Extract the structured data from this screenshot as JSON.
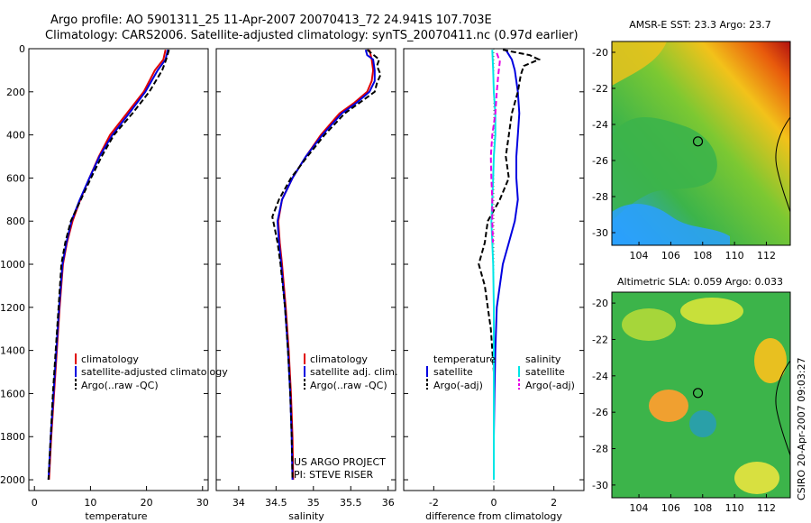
{
  "header": {
    "line1": "Argo profile: AO 5901311_25 11-Apr-2007 20070413_72 24.941S 107.703E",
    "line2": "Climatology: CARS2006. Satellite-adjusted climatology: synTS_20070411.nc (0.97d earlier)"
  },
  "colors": {
    "climatology": "#e00000",
    "satellite": "#0000e0",
    "argo": "#000000",
    "satellite_diff_salinity": "#00e6e6",
    "argo_diff_salinity": "#e600e6"
  },
  "side_text": "CSIRO  20-Apr-2007 09:03:27",
  "chart_data": [
    {
      "type": "line",
      "xlabel": "temperature",
      "xlim": [
        -1,
        31
      ],
      "ylim": [
        2050,
        0
      ],
      "xticks": [
        "0",
        "10",
        "20",
        "30"
      ],
      "xtick_values": [
        0,
        10,
        20,
        30
      ],
      "yticks": [
        "0",
        "200",
        "400",
        "600",
        "800",
        "1000",
        "1200",
        "1400",
        "1600",
        "1800",
        "2000"
      ],
      "ytick_values": [
        0,
        200,
        400,
        600,
        800,
        1000,
        1200,
        1400,
        1600,
        1800,
        2000
      ],
      "legend": [
        "climatology",
        "satellite-adjusted climatology",
        "Argo(..raw -QC)"
      ],
      "series": [
        {
          "name": "climatology",
          "color": "climatology",
          "dash": "",
          "points": [
            [
              23.4,
              5
            ],
            [
              23.0,
              50
            ],
            [
              21.5,
              100
            ],
            [
              19.5,
              200
            ],
            [
              16.5,
              300
            ],
            [
              13.5,
              400
            ],
            [
              11.5,
              500
            ],
            [
              9.8,
              600
            ],
            [
              8.2,
              700
            ],
            [
              6.8,
              800
            ],
            [
              5.8,
              900
            ],
            [
              5.1,
              1000
            ],
            [
              4.5,
              1200
            ],
            [
              4.0,
              1400
            ],
            [
              3.5,
              1600
            ],
            [
              3.0,
              1800
            ],
            [
              2.6,
              2000
            ]
          ]
        },
        {
          "name": "satellite-adjusted climatology",
          "color": "satellite",
          "dash": "",
          "points": [
            [
              23.8,
              5
            ],
            [
              23.4,
              50
            ],
            [
              22.0,
              100
            ],
            [
              19.8,
              200
            ],
            [
              16.9,
              300
            ],
            [
              13.9,
              400
            ],
            [
              11.6,
              500
            ],
            [
              9.8,
              600
            ],
            [
              8.1,
              700
            ],
            [
              6.6,
              800
            ],
            [
              5.7,
              900
            ],
            [
              5.0,
              1000
            ],
            [
              4.4,
              1200
            ],
            [
              3.9,
              1400
            ],
            [
              3.4,
              1600
            ],
            [
              2.9,
              1800
            ],
            [
              2.5,
              2000
            ]
          ]
        },
        {
          "name": "Argo(..raw -QC)",
          "color": "argo",
          "dash": "6,3",
          "points": [
            [
              24.0,
              5
            ],
            [
              23.5,
              50
            ],
            [
              22.8,
              100
            ],
            [
              20.5,
              200
            ],
            [
              17.5,
              300
            ],
            [
              14.2,
              400
            ],
            [
              12.0,
              500
            ],
            [
              10.1,
              600
            ],
            [
              8.3,
              700
            ],
            [
              6.5,
              800
            ],
            [
              5.5,
              900
            ],
            [
              4.8,
              1000
            ],
            [
              4.3,
              1200
            ],
            [
              3.8,
              1400
            ],
            [
              3.3,
              1600
            ],
            [
              2.9,
              1800
            ],
            [
              2.5,
              2000
            ]
          ]
        }
      ]
    },
    {
      "type": "line",
      "xlabel": "salinity",
      "xlim": [
        33.7,
        36.1
      ],
      "ylim": [
        2050,
        0
      ],
      "xticks": [
        "34",
        "34.5",
        "35",
        "35.5",
        "36"
      ],
      "xtick_values": [
        34,
        34.5,
        35,
        35.5,
        36
      ],
      "legend": [
        "climatology",
        "satellite adj. clim.",
        "Argo(..raw -QC)"
      ],
      "annotations": [
        "US ARGO PROJECT",
        "PI: STEVE RISER"
      ],
      "series": [
        {
          "name": "climatology",
          "color": "climatology",
          "dash": "",
          "points": [
            [
              35.75,
              5
            ],
            [
              35.78,
              50
            ],
            [
              35.8,
              100
            ],
            [
              35.78,
              150
            ],
            [
              35.72,
              200
            ],
            [
              35.55,
              250
            ],
            [
              35.35,
              300
            ],
            [
              35.1,
              400
            ],
            [
              34.9,
              500
            ],
            [
              34.72,
              600
            ],
            [
              34.58,
              700
            ],
            [
              34.53,
              800
            ],
            [
              34.55,
              900
            ],
            [
              34.58,
              1000
            ],
            [
              34.63,
              1200
            ],
            [
              34.67,
              1400
            ],
            [
              34.7,
              1600
            ],
            [
              34.72,
              1800
            ],
            [
              34.73,
              2000
            ]
          ]
        },
        {
          "name": "satellite adj. clim.",
          "color": "satellite",
          "dash": "",
          "points": [
            [
              35.7,
              5
            ],
            [
              35.72,
              30
            ],
            [
              35.8,
              50
            ],
            [
              35.82,
              100
            ],
            [
              35.82,
              150
            ],
            [
              35.75,
              200
            ],
            [
              35.58,
              250
            ],
            [
              35.38,
              300
            ],
            [
              35.12,
              400
            ],
            [
              34.9,
              500
            ],
            [
              34.72,
              600
            ],
            [
              34.58,
              700
            ],
            [
              34.52,
              800
            ],
            [
              34.54,
              900
            ],
            [
              34.57,
              1000
            ],
            [
              34.62,
              1200
            ],
            [
              34.66,
              1400
            ],
            [
              34.69,
              1600
            ],
            [
              34.71,
              1800
            ],
            [
              34.72,
              2000
            ]
          ]
        },
        {
          "name": "Argo(..raw -QC)",
          "color": "argo",
          "dash": "6,3",
          "points": [
            [
              35.72,
              5
            ],
            [
              35.88,
              50
            ],
            [
              35.85,
              80
            ],
            [
              35.9,
              120
            ],
            [
              35.85,
              160
            ],
            [
              35.82,
              200
            ],
            [
              35.62,
              250
            ],
            [
              35.42,
              300
            ],
            [
              35.15,
              400
            ],
            [
              34.92,
              500
            ],
            [
              34.7,
              600
            ],
            [
              34.54,
              700
            ],
            [
              34.45,
              780
            ],
            [
              34.48,
              830
            ],
            [
              34.52,
              900
            ],
            [
              34.56,
              1000
            ],
            [
              34.62,
              1200
            ],
            [
              34.66,
              1400
            ],
            [
              34.69,
              1600
            ],
            [
              34.71,
              1800
            ],
            [
              34.72,
              2000
            ]
          ]
        }
      ]
    },
    {
      "type": "line",
      "xlabel": "difference from climatology",
      "xlim": [
        -3,
        3
      ],
      "ylim": [
        2050,
        0
      ],
      "xticks": [
        "-2",
        "0",
        "2"
      ],
      "xtick_values": [
        -2,
        0,
        2
      ],
      "legend_headers": [
        "temperature",
        "salinity"
      ],
      "legend": [
        "satellite",
        "Argo(-adj)",
        "satellite",
        "Argo(-adj)"
      ],
      "series": [
        {
          "name": "satellite",
          "group": "temperature",
          "color": "satellite",
          "dash": "",
          "points": [
            [
              0.4,
              5
            ],
            [
              0.6,
              50
            ],
            [
              0.7,
              100
            ],
            [
              0.8,
              200
            ],
            [
              0.85,
              300
            ],
            [
              0.8,
              400
            ],
            [
              0.75,
              500
            ],
            [
              0.75,
              600
            ],
            [
              0.8,
              700
            ],
            [
              0.7,
              800
            ],
            [
              0.5,
              900
            ],
            [
              0.3,
              1000
            ],
            [
              0.1,
              1200
            ],
            [
              0.05,
              1400
            ],
            [
              0.02,
              1600
            ],
            [
              0.0,
              1800
            ],
            [
              0.0,
              2000
            ]
          ]
        },
        {
          "name": "Argo(-adj)",
          "group": "temperature",
          "color": "argo",
          "dash": "6,3",
          "points": [
            [
              0.3,
              5
            ],
            [
              1.2,
              30
            ],
            [
              1.5,
              50
            ],
            [
              1.0,
              80
            ],
            [
              0.9,
              120
            ],
            [
              0.8,
              200
            ],
            [
              0.6,
              300
            ],
            [
              0.5,
              400
            ],
            [
              0.4,
              500
            ],
            [
              0.5,
              600
            ],
            [
              0.2,
              700
            ],
            [
              -0.2,
              800
            ],
            [
              -0.3,
              900
            ],
            [
              -0.5,
              1000
            ],
            [
              -0.3,
              1100
            ],
            [
              -0.2,
              1200
            ],
            [
              -0.1,
              1300
            ],
            [
              0.0,
              1500
            ],
            [
              0.0,
              2000
            ]
          ]
        },
        {
          "name": "satellite",
          "group": "salinity",
          "color": "satellite_diff_salinity",
          "dash": "",
          "points": [
            [
              -0.05,
              5
            ],
            [
              -0.02,
              100
            ],
            [
              0.0,
              200
            ],
            [
              0.05,
              300
            ],
            [
              0.05,
              400
            ],
            [
              0.0,
              500
            ],
            [
              -0.02,
              600
            ],
            [
              -0.05,
              700
            ],
            [
              -0.08,
              800
            ],
            [
              -0.05,
              900
            ],
            [
              -0.02,
              1000
            ],
            [
              0.0,
              1200
            ],
            [
              0.0,
              1400
            ],
            [
              0.0,
              1600
            ],
            [
              0.0,
              1800
            ],
            [
              0.0,
              2000
            ]
          ]
        },
        {
          "name": "Argo(-adj)",
          "group": "salinity",
          "color": "argo_diff_salinity",
          "dash": "6,3",
          "points": [
            [
              0.1,
              20
            ],
            [
              0.2,
              60
            ],
            [
              0.15,
              120
            ],
            [
              0.1,
              200
            ],
            [
              0.05,
              300
            ],
            [
              -0.05,
              400
            ],
            [
              -0.1,
              500
            ],
            [
              -0.08,
              600
            ],
            [
              -0.05,
              700
            ],
            [
              -0.05,
              800
            ],
            [
              -0.03,
              900
            ]
          ]
        }
      ]
    },
    {
      "type": "heatmap",
      "title": "AMSR-E SST: 23.3 Argo: 23.7",
      "xticks": [
        "104",
        "106",
        "108",
        "110",
        "112"
      ],
      "xtick_values": [
        104,
        106,
        108,
        110,
        112
      ],
      "yticks": [
        "-20",
        "-22",
        "-24",
        "-26",
        "-28",
        "-30"
      ],
      "ytick_values": [
        -20,
        -22,
        -24,
        -26,
        -28,
        -30
      ],
      "xlim": [
        102.3,
        113.5
      ],
      "ylim": [
        -30.7,
        -19.4
      ],
      "marker": {
        "lon": 107.703,
        "lat": -24.941
      }
    },
    {
      "type": "heatmap",
      "title": "Altimetric SLA: 0.059 Argo: 0.033",
      "xticks": [
        "104",
        "106",
        "108",
        "110",
        "112"
      ],
      "xtick_values": [
        104,
        106,
        108,
        110,
        112
      ],
      "yticks": [
        "-20",
        "-22",
        "-24",
        "-26",
        "-28",
        "-30"
      ],
      "ytick_values": [
        -20,
        -22,
        -24,
        -26,
        -28,
        -30
      ],
      "xlim": [
        102.3,
        113.5
      ],
      "ylim": [
        -30.7,
        -19.4
      ],
      "marker": {
        "lon": 107.703,
        "lat": -24.941
      }
    }
  ]
}
